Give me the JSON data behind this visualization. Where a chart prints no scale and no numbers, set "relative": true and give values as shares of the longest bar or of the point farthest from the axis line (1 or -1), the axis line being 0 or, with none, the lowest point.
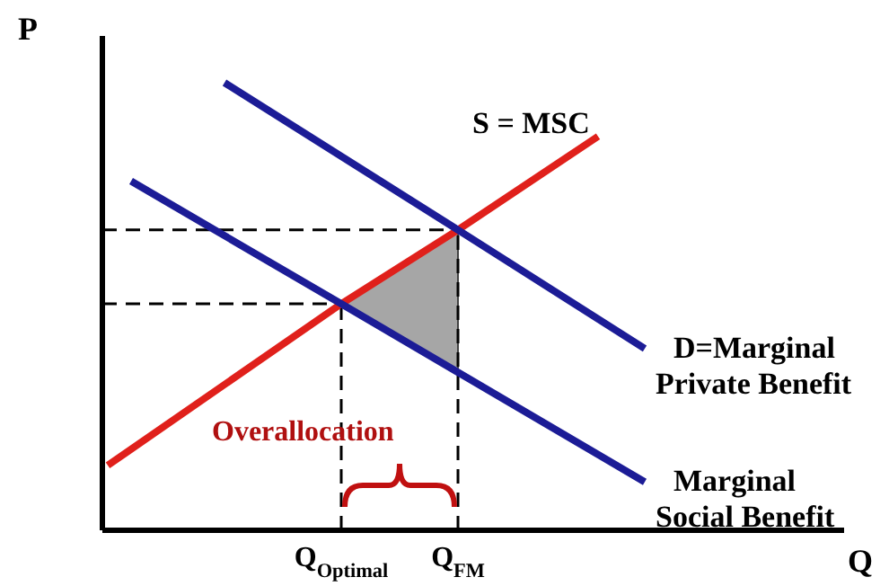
{
  "chart_data": {
    "type": "line",
    "relative": true,
    "xlabel": "Q",
    "ylabel": "P",
    "categories": [
      null,
      null,
      null,
      null,
      null,
      null,
      null,
      null,
      null,
      null,
      "Q$_{Optimal}$",
      null,
      null,
      null,
      null,
      "Q$_{FM}$",
      null,
      null,
      null,
      null,
      null,
      null,
      null,
      null,
      null,
      null,
      null,
      null,
      null,
      null,
      null,
      null
    ],
    "series": [
      {
        "name": "S = MSC",
        "color": "#e0201b",
        "values": [
          0.145,
          null,
          null,
          null,
          null,
          null,
          null,
          null,
          null,
          null,
          0.506,
          null,
          null,
          null,
          null,
          0.671,
          null,
          null,
          null,
          null,
          null,
          0.88,
          null,
          null,
          null,
          null,
          null,
          null,
          null,
          null,
          null,
          null
        ]
      },
      {
        "name": "D=Marginal Private Benefit",
        "color": "#1c1c96",
        "values": [
          null,
          null,
          null,
          null,
          null,
          1,
          null,
          null,
          null,
          null,
          null,
          null,
          null,
          null,
          null,
          0.671,
          null,
          null,
          null,
          null,
          null,
          null,
          null,
          0.406,
          null,
          null,
          null,
          null,
          null,
          null,
          null,
          null
        ]
      },
      {
        "name": "Marginal Social Benefit",
        "color": "#1c1c96",
        "values": [
          null,
          0.78,
          null,
          null,
          null,
          null,
          null,
          null,
          null,
          null,
          0.506,
          null,
          null,
          null,
          null,
          0.353,
          null,
          null,
          null,
          null,
          null,
          null,
          null,
          0.108,
          null,
          null,
          null,
          null,
          null,
          null,
          null,
          null
        ]
      }
    ],
    "annotations": [
      "Overallocation"
    ],
    "ref_lines": [
      {
        "axis": "y",
        "value": 0.506,
        "color": "#000000",
        "line_style": "dashed"
      },
      {
        "axis": "x",
        "value": "Q$_{Optimal}$",
        "color": "#000000",
        "line_style": "dashed"
      },
      {
        "axis": "y",
        "value": 0.671,
        "color": "#000000",
        "line_style": "dashed"
      },
      {
        "axis": "x",
        "value": "Q$_{FM}$",
        "color": "#000000",
        "line_style": "dashed"
      }
    ],
    "legend": false,
    "marker": "none",
    "line_style": "solid"
  }
}
